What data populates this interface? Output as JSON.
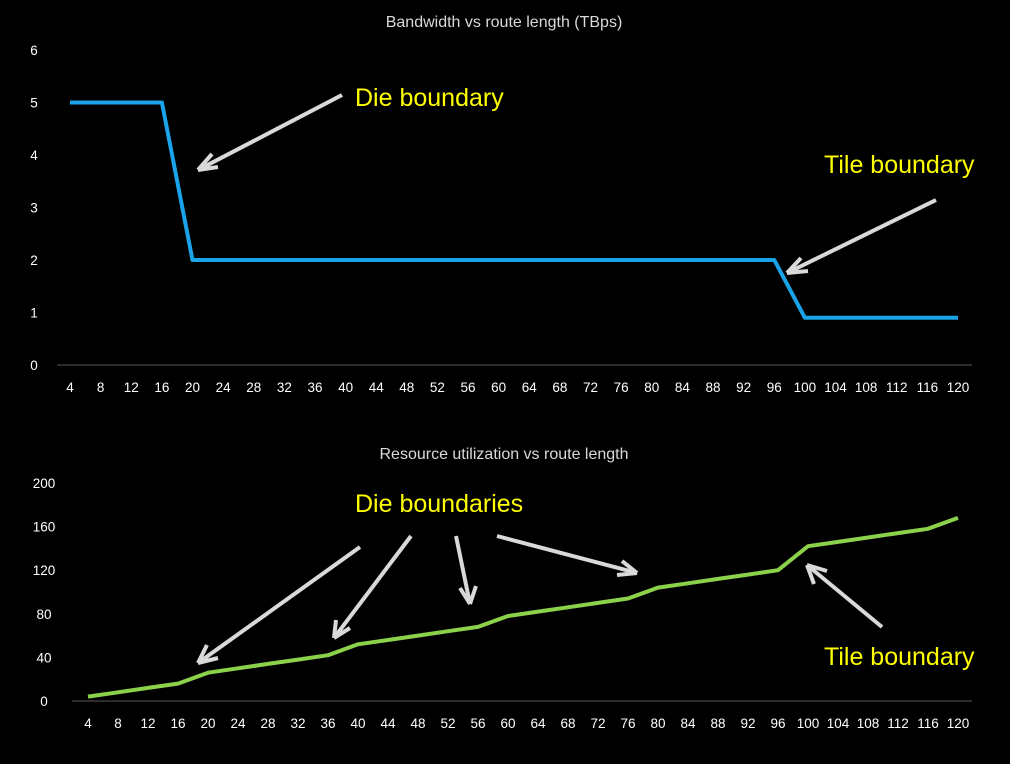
{
  "chart_data": [
    {
      "type": "line",
      "title": "Bandwidth vs route length (TBps)",
      "x": [
        4,
        8,
        12,
        16,
        20,
        24,
        28,
        32,
        36,
        40,
        44,
        48,
        52,
        56,
        60,
        64,
        68,
        72,
        76,
        80,
        84,
        88,
        92,
        96,
        100,
        104,
        108,
        112,
        116,
        120
      ],
      "series": [
        {
          "values": [
            5,
            5,
            5,
            5,
            2,
            2,
            2,
            2,
            2,
            2,
            2,
            2,
            2,
            2,
            2,
            2,
            2,
            2,
            2,
            2,
            2,
            2,
            2,
            2,
            0.9,
            0.9,
            0.9,
            0.9,
            0.9,
            0.9
          ]
        }
      ],
      "ylim": [
        0,
        6
      ],
      "yticks": [
        "0",
        "1",
        "2",
        "3",
        "4",
        "5",
        "6"
      ],
      "xticks": [
        "4",
        "8",
        "12",
        "16",
        "20",
        "24",
        "28",
        "32",
        "36",
        "40",
        "44",
        "48",
        "52",
        "56",
        "60",
        "64",
        "68",
        "72",
        "76",
        "80",
        "84",
        "88",
        "92",
        "96",
        "100",
        "104",
        "108",
        "112",
        "116",
        "120"
      ],
      "line_color": "#1aa3e8",
      "annotations": [
        "Die boundary",
        "Tile boundary"
      ],
      "annotation_color": "#ffff00",
      "grid": false
    },
    {
      "type": "line",
      "title": "Resource utilization vs route length",
      "x": [
        4,
        8,
        12,
        16,
        20,
        24,
        28,
        32,
        36,
        40,
        44,
        48,
        52,
        56,
        60,
        64,
        68,
        72,
        76,
        80,
        84,
        88,
        92,
        96,
        100,
        104,
        108,
        112,
        116,
        120
      ],
      "series": [
        {
          "values": [
            4,
            8,
            12,
            16,
            26,
            30,
            34,
            38,
            42,
            52,
            56,
            60,
            64,
            68,
            78,
            82,
            86,
            90,
            94,
            104,
            108,
            112,
            116,
            120,
            142,
            146,
            150,
            154,
            158,
            168
          ]
        }
      ],
      "ylim": [
        0,
        200
      ],
      "yticks": [
        "0",
        "40",
        "80",
        "120",
        "160",
        "200"
      ],
      "xticks": [
        "4",
        "8",
        "12",
        "16",
        "20",
        "24",
        "28",
        "32",
        "36",
        "40",
        "44",
        "48",
        "52",
        "56",
        "60",
        "64",
        "68",
        "72",
        "76",
        "80",
        "84",
        "88",
        "92",
        "96",
        "100",
        "104",
        "108",
        "112",
        "116",
        "120"
      ],
      "line_color": "#8cd14a",
      "annotations": [
        "Die boundaries",
        "Tile boundary"
      ],
      "annotation_color": "#ffff00",
      "grid": false
    }
  ]
}
